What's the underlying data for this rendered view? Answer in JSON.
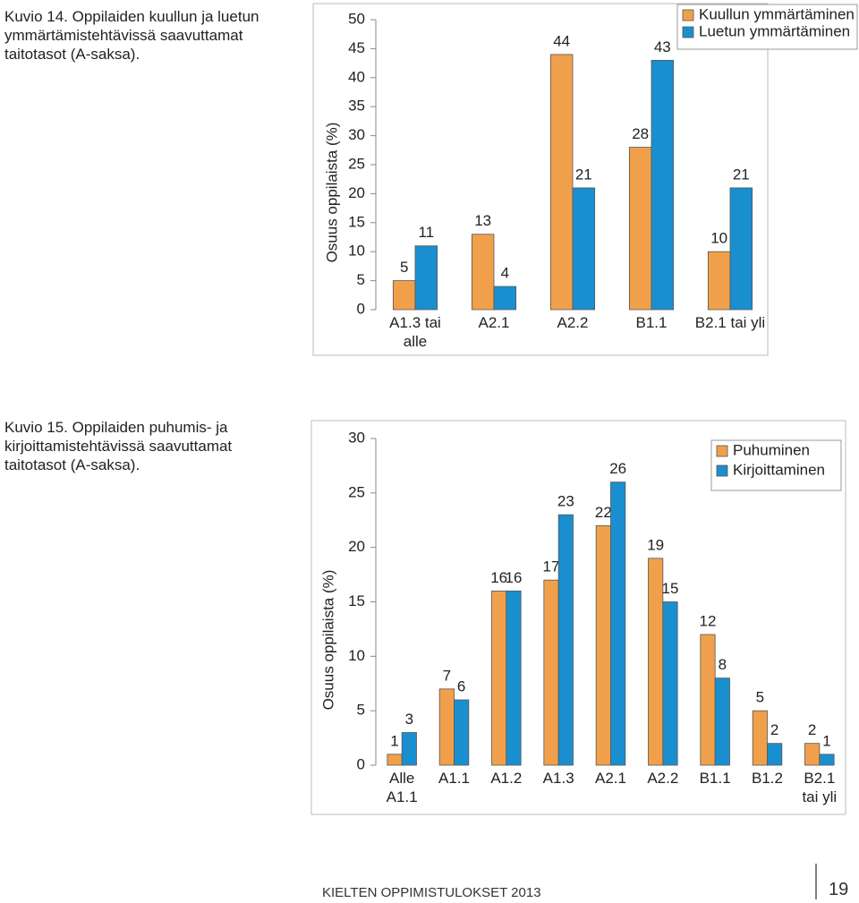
{
  "chart_data": [
    {
      "type": "bar",
      "title": "Kuvio 14. Oppilaiden kuullun ja luetun ymmärtämistehtävissä saavuttamat taitotasot (A-saksa).",
      "y_label": "Osuus oppilaista (%)",
      "categories": [
        "A1.3 tai alle",
        "A2.1",
        "A2.2",
        "B1.1",
        "B2.1 tai yli"
      ],
      "series": [
        {
          "name": "Kuullun ymmärtäminen",
          "color": "#f0a04b",
          "values": [
            5,
            13,
            44,
            28,
            10
          ]
        },
        {
          "name": "Luetun ymmärtäminen",
          "color": "#1a8fd0",
          "values": [
            11,
            4,
            21,
            43,
            21
          ]
        }
      ],
      "ylim": [
        0,
        50
      ],
      "yticks": [
        0,
        5,
        10,
        15,
        20,
        25,
        30,
        35,
        40,
        45,
        50
      ],
      "grid": false,
      "legend": "upper right"
    },
    {
      "type": "bar",
      "title": "Kuvio 15. Oppilaiden puhumis- ja kirjoittamistehtävissä saavuttamat taitotasot (A-saksa).",
      "y_label": "Osuus oppilaista (%)",
      "categories": [
        "Alle A1.1",
        "A1.1",
        "A1.2",
        "A1.3",
        "A2.1",
        "A2.2",
        "B1.1",
        "B1.2",
        "B2.1 tai yli"
      ],
      "series": [
        {
          "name": "Puhuminen",
          "color": "#f0a04b",
          "values": [
            1,
            7,
            16,
            17,
            22,
            19,
            12,
            5,
            2
          ]
        },
        {
          "name": "Kirjoittaminen",
          "color": "#1a8fd0",
          "values": [
            3,
            6,
            16,
            23,
            26,
            15,
            8,
            2,
            1
          ]
        }
      ],
      "ylim": [
        0,
        30
      ],
      "yticks": [
        0,
        5,
        10,
        15,
        20,
        25,
        30
      ],
      "grid": false,
      "legend": "upper right"
    }
  ],
  "footer": {
    "text": "KIELTEN OPPIMISTULOKSET 2013",
    "page": "19"
  }
}
